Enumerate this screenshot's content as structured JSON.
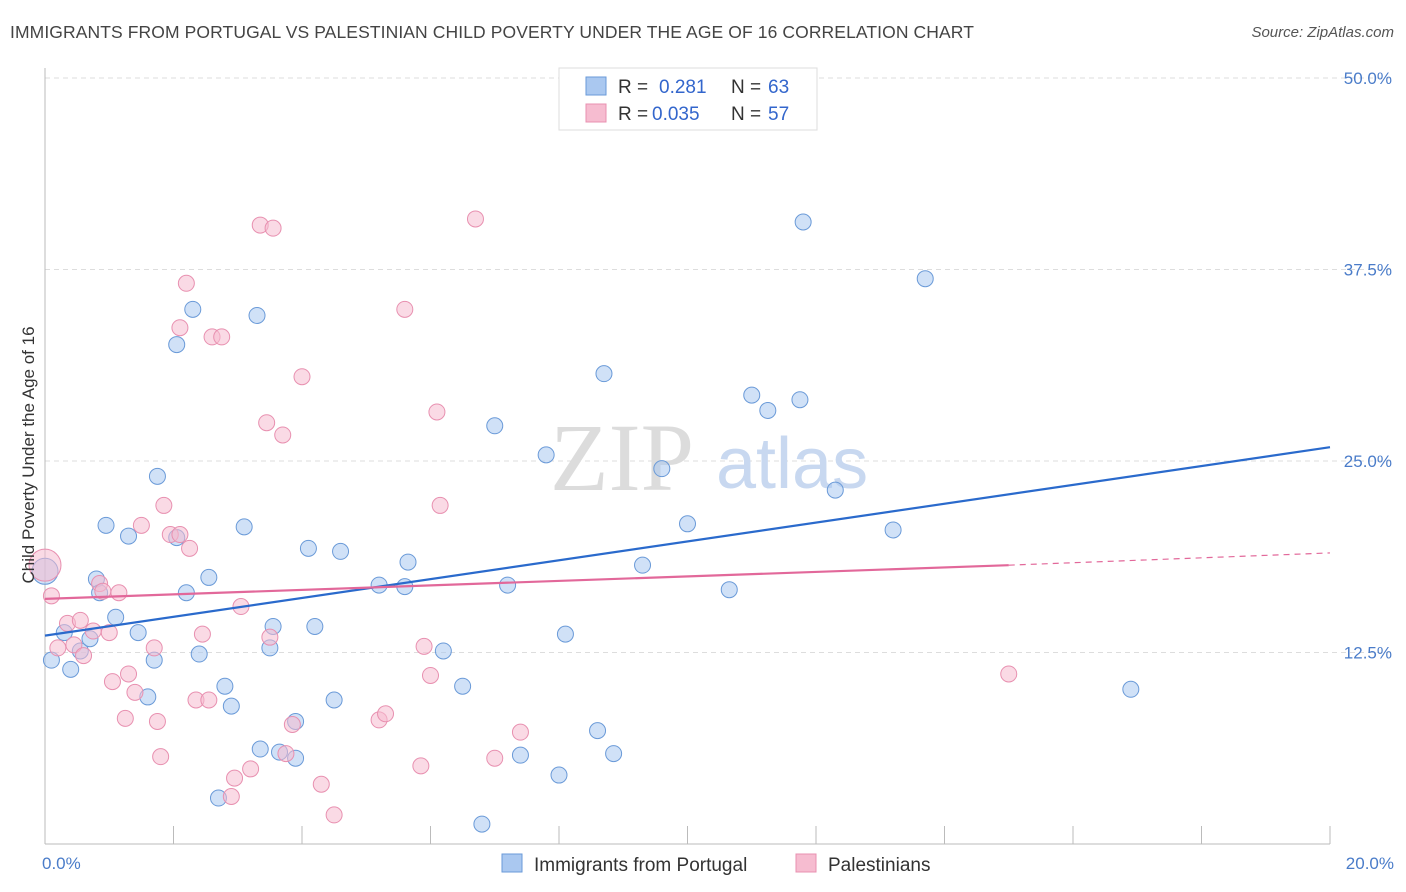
{
  "header": {
    "title": "IMMIGRANTS FROM PORTUGAL VS PALESTINIAN CHILD POVERTY UNDER THE AGE OF 16 CORRELATION CHART",
    "source": "Source: ZipAtlas.com"
  },
  "legend": {
    "rows": [
      {
        "r_label": "R =",
        "r_value": "0.281",
        "n_label": "N =",
        "n_value": "63"
      },
      {
        "r_label": "R =",
        "r_value": "0.035",
        "n_label": "N =",
        "n_value": "57"
      }
    ]
  },
  "bottom_legend": {
    "items": [
      "Immigrants from Portugal",
      "Palestinians"
    ]
  },
  "watermark": {
    "zip": "ZIP",
    "atlas": "atlas"
  },
  "chart_data": {
    "type": "scatter",
    "title": "IMMIGRANTS FROM PORTUGAL VS PALESTINIAN CHILD POVERTY UNDER THE AGE OF 16 CORRELATION CHART",
    "xlabel": "",
    "ylabel": "Child Poverty Under the Age of 16",
    "xlim": [
      0,
      20
    ],
    "ylim": [
      0,
      50
    ],
    "x_tick_labels": [
      "0.0%",
      "20.0%"
    ],
    "y_ticks": [
      12.5,
      25.0,
      37.5,
      50.0
    ],
    "y_tick_labels": [
      "12.5%",
      "25.0%",
      "37.5%",
      "50.0%"
    ],
    "grid": true,
    "legend_position": "top-center",
    "colors": {
      "blue_fill": "#aac8f0",
      "blue_stroke": "#6a9ad8",
      "blue_line": "#2a6acc",
      "pink_fill": "#f6bcd0",
      "pink_stroke": "#e890b0",
      "pink_line": "#e2689a",
      "tick": "#4a7cc9"
    },
    "series": [
      {
        "name": "Immigrants from Portugal",
        "color": "#aac8f0",
        "points": [
          [
            0.0,
            17.8
          ],
          [
            0.1,
            12.0
          ],
          [
            0.3,
            13.8
          ],
          [
            0.4,
            11.4
          ],
          [
            0.55,
            12.6
          ],
          [
            0.7,
            13.4
          ],
          [
            0.8,
            17.3
          ],
          [
            0.85,
            16.4
          ],
          [
            0.95,
            20.8
          ],
          [
            1.1,
            14.8
          ],
          [
            1.3,
            20.1
          ],
          [
            1.45,
            13.8
          ],
          [
            1.6,
            9.6
          ],
          [
            1.7,
            12.0
          ],
          [
            1.75,
            24.0
          ],
          [
            2.05,
            20.0
          ],
          [
            2.05,
            32.6
          ],
          [
            2.2,
            16.4
          ],
          [
            2.3,
            34.9
          ],
          [
            2.4,
            12.4
          ],
          [
            2.55,
            17.4
          ],
          [
            2.8,
            10.3
          ],
          [
            2.9,
            9.0
          ],
          [
            3.1,
            20.7
          ],
          [
            3.3,
            34.5
          ],
          [
            3.35,
            6.2
          ],
          [
            3.5,
            12.8
          ],
          [
            3.55,
            14.2
          ],
          [
            3.65,
            6.0
          ],
          [
            3.9,
            5.6
          ],
          [
            4.1,
            19.3
          ],
          [
            4.2,
            14.2
          ],
          [
            4.5,
            9.4
          ],
          [
            4.6,
            19.1
          ],
          [
            5.2,
            16.9
          ],
          [
            5.6,
            16.8
          ],
          [
            5.65,
            18.4
          ],
          [
            6.2,
            12.6
          ],
          [
            6.5,
            10.3
          ],
          [
            6.8,
            1.3
          ],
          [
            7.0,
            27.3
          ],
          [
            7.2,
            16.9
          ],
          [
            7.4,
            5.8
          ],
          [
            7.8,
            25.4
          ],
          [
            8.0,
            4.5
          ],
          [
            8.1,
            13.7
          ],
          [
            8.6,
            7.4
          ],
          [
            8.7,
            30.7
          ],
          [
            8.85,
            5.9
          ],
          [
            9.3,
            18.2
          ],
          [
            9.6,
            24.5
          ],
          [
            10.0,
            20.9
          ],
          [
            10.65,
            16.6
          ],
          [
            11.0,
            29.3
          ],
          [
            11.25,
            28.3
          ],
          [
            11.75,
            29.0
          ],
          [
            11.8,
            40.6
          ],
          [
            12.3,
            23.1
          ],
          [
            13.2,
            20.5
          ],
          [
            13.7,
            36.9
          ],
          [
            16.9,
            10.1
          ],
          [
            2.7,
            3.0
          ],
          [
            3.9,
            8.0
          ]
        ]
      },
      {
        "name": "Palestinians",
        "color": "#f6bcd0",
        "points": [
          [
            0.0,
            18.2
          ],
          [
            0.1,
            16.2
          ],
          [
            0.2,
            12.8
          ],
          [
            0.35,
            14.4
          ],
          [
            0.45,
            13.0
          ],
          [
            0.55,
            14.6
          ],
          [
            0.6,
            12.3
          ],
          [
            0.75,
            13.9
          ],
          [
            0.85,
            17.0
          ],
          [
            0.9,
            16.5
          ],
          [
            1.0,
            13.8
          ],
          [
            1.05,
            10.6
          ],
          [
            1.15,
            16.4
          ],
          [
            1.25,
            8.2
          ],
          [
            1.3,
            11.1
          ],
          [
            1.4,
            9.9
          ],
          [
            1.5,
            20.8
          ],
          [
            1.7,
            12.8
          ],
          [
            1.75,
            8.0
          ],
          [
            1.8,
            5.7
          ],
          [
            1.85,
            22.1
          ],
          [
            1.95,
            20.2
          ],
          [
            2.1,
            20.2
          ],
          [
            2.1,
            33.7
          ],
          [
            2.2,
            36.6
          ],
          [
            2.25,
            19.3
          ],
          [
            2.35,
            9.4
          ],
          [
            2.45,
            13.7
          ],
          [
            2.55,
            9.4
          ],
          [
            2.6,
            33.1
          ],
          [
            2.75,
            33.1
          ],
          [
            2.9,
            3.1
          ],
          [
            2.95,
            4.3
          ],
          [
            3.05,
            15.5
          ],
          [
            3.2,
            4.9
          ],
          [
            3.35,
            40.4
          ],
          [
            3.45,
            27.5
          ],
          [
            3.5,
            13.5
          ],
          [
            3.55,
            40.2
          ],
          [
            3.7,
            26.7
          ],
          [
            3.75,
            5.9
          ],
          [
            3.85,
            7.8
          ],
          [
            4.0,
            30.5
          ],
          [
            4.3,
            3.9
          ],
          [
            4.5,
            1.9
          ],
          [
            5.2,
            8.1
          ],
          [
            5.3,
            8.5
          ],
          [
            5.6,
            34.9
          ],
          [
            5.85,
            5.1
          ],
          [
            5.9,
            12.9
          ],
          [
            6.0,
            11.0
          ],
          [
            6.1,
            28.2
          ],
          [
            6.15,
            22.1
          ],
          [
            6.7,
            40.8
          ],
          [
            7.0,
            5.6
          ],
          [
            15.0,
            11.1
          ],
          [
            7.4,
            7.3
          ]
        ]
      }
    ],
    "trend_lines": [
      {
        "series": "Immigrants from Portugal",
        "x": [
          0,
          20
        ],
        "y": [
          13.6,
          25.9
        ]
      },
      {
        "series": "Palestinians",
        "x": [
          0,
          15
        ],
        "y": [
          16.0,
          18.2
        ],
        "dashed_extension": {
          "x": [
            15,
            20
          ],
          "y": [
            18.2,
            19.0
          ]
        }
      }
    ]
  }
}
